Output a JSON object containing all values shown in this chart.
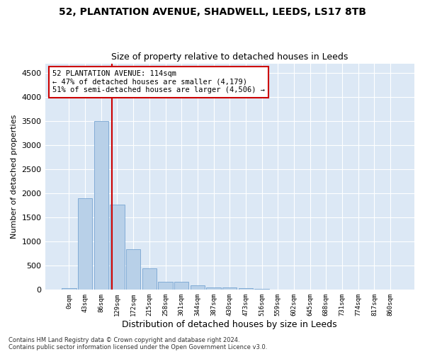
{
  "title1": "52, PLANTATION AVENUE, SHADWELL, LEEDS, LS17 8TB",
  "title2": "Size of property relative to detached houses in Leeds",
  "xlabel": "Distribution of detached houses by size in Leeds",
  "ylabel": "Number of detached properties",
  "bar_color": "#b8d0e8",
  "bar_edge_color": "#6699cc",
  "vline_color": "#cc0000",
  "vline_x": 2.65,
  "annotation_text": "52 PLANTATION AVENUE: 114sqm\n← 47% of detached houses are smaller (4,179)\n51% of semi-detached houses are larger (4,506) →",
  "annotation_box_color": "#ffffff",
  "annotation_box_edge": "#cc0000",
  "background_color": "#dce8f5",
  "grid_color": "#ffffff",
  "categories": [
    "0sqm",
    "43sqm",
    "86sqm",
    "129sqm",
    "172sqm",
    "215sqm",
    "258sqm",
    "301sqm",
    "344sqm",
    "387sqm",
    "430sqm",
    "473sqm",
    "516sqm",
    "559sqm",
    "602sqm",
    "645sqm",
    "688sqm",
    "731sqm",
    "774sqm",
    "817sqm",
    "860sqm"
  ],
  "values": [
    30,
    1900,
    3500,
    1775,
    840,
    450,
    170,
    170,
    95,
    55,
    50,
    30,
    15,
    10,
    5,
    5,
    3,
    2,
    1,
    1,
    0
  ],
  "ylim": [
    0,
    4700
  ],
  "yticks": [
    0,
    500,
    1000,
    1500,
    2000,
    2500,
    3000,
    3500,
    4000,
    4500
  ],
  "footer1": "Contains HM Land Registry data © Crown copyright and database right 2024.",
  "footer2": "Contains public sector information licensed under the Open Government Licence v3.0."
}
